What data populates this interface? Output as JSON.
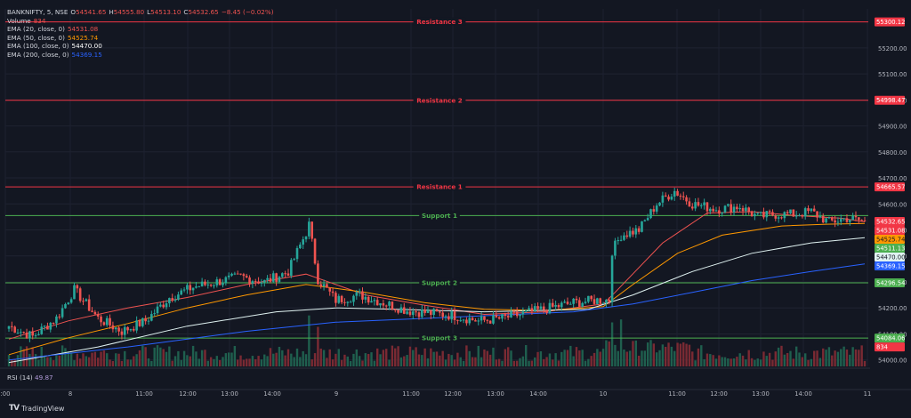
{
  "header": {
    "symbol": "BANKNIFTY, 5, NSE",
    "ohlc": {
      "open_label": "O",
      "open": "54541.65",
      "high_label": "H",
      "high": "54555.80",
      "low_label": "L",
      "low": "54513.10",
      "close_label": "C",
      "close": "54532.65",
      "change": "−8.45 (−0.02%)"
    },
    "volume_label": "Volume",
    "volume_value": "834",
    "ema_rows": [
      {
        "label": "EMA (20, close, 0)",
        "value": "54531.08",
        "color": "#ef5350"
      },
      {
        "label": "EMA (50, close, 0)",
        "value": "54525.74",
        "color": "#ff9800"
      },
      {
        "label": "EMA (100, close, 0)",
        "value": "54470.00",
        "color": "#e0f2f1"
      },
      {
        "label": "EMA (200, close, 0)",
        "value": "54369.15",
        "color": "#2962ff"
      }
    ]
  },
  "rsi": {
    "label": "RSI (14)",
    "value": "49.87",
    "color": "#b39ddb"
  },
  "branding": {
    "name": "TradingView"
  },
  "chart_data": {
    "type": "candlestick",
    "ylim": [
      53975,
      55350
    ],
    "yticks": [
      54000,
      54100,
      54200,
      54300,
      54400,
      54500,
      54600,
      54700,
      54800,
      54900,
      55000,
      55100,
      55200
    ],
    "ytick_labels": [
      "54000.00",
      "54100.00",
      "54200.00",
      "54300.00",
      "54400.00",
      "54500.00",
      "54600.00",
      "54700.00",
      "54800.00",
      "54900.00",
      "55000.00",
      "55100.00",
      "55200.00"
    ],
    "xtick_labels": [
      ":00",
      "8",
      "11:00",
      "12:00",
      "13:00",
      "14:00",
      "9",
      "11:00",
      "12:00",
      "13:00",
      "14:00",
      "10",
      "11:00",
      "12:00",
      "13:00",
      "14:00",
      "11"
    ],
    "levels": [
      {
        "name": "Resistance 3",
        "value": 55300.12,
        "label": "55300.12",
        "color": "#f23645"
      },
      {
        "name": "Resistance 2",
        "value": 54998.47,
        "label": "54998.47",
        "color": "#f23645"
      },
      {
        "name": "Resistance 1",
        "value": 54665.57,
        "label": "54665.57",
        "color": "#f23645"
      },
      {
        "name": "Support 1",
        "value": 54555.0,
        "label": "",
        "color": "#4caf50"
      },
      {
        "name": "Support 2",
        "value": 54296.54,
        "label": "54296.54",
        "color": "#4caf50"
      },
      {
        "name": "Support 3",
        "value": 54084.06,
        "label": "54084.06",
        "color": "#4caf50"
      }
    ],
    "price_tags": [
      {
        "value": 54532.65,
        "label": "54532.65",
        "color": "#f23645",
        "text_color": "#ffffff"
      },
      {
        "value": 54531.08,
        "label": "54531.08",
        "color": "#f23645",
        "text_color": "#ffffff"
      },
      {
        "value": 54525.74,
        "label": "54525.74",
        "color": "#ff9800",
        "text_color": "#131722"
      },
      {
        "value": 54511.13,
        "label": "54511.13",
        "color": "#4caf50",
        "text_color": "#ffffff"
      },
      {
        "value": 54470.0,
        "label": "54470.00",
        "color": "#e0f2f1",
        "text_color": "#131722"
      },
      {
        "value": 54369.15,
        "label": "54369.15",
        "color": "#2962ff",
        "text_color": "#ffffff"
      },
      {
        "value": 54072.0,
        "label": "834",
        "color": "#f23645",
        "text_color": "#ffffff"
      }
    ],
    "candle_anchors": [
      [
        0,
        54130
      ],
      [
        8,
        54090
      ],
      [
        16,
        54160
      ],
      [
        22,
        54270
      ],
      [
        30,
        54160
      ],
      [
        38,
        54110
      ],
      [
        46,
        54150
      ],
      [
        54,
        54240
      ],
      [
        62,
        54280
      ],
      [
        70,
        54300
      ],
      [
        78,
        54320
      ],
      [
        86,
        54300
      ],
      [
        94,
        54340
      ],
      [
        100,
        54490
      ],
      [
        101,
        54520
      ],
      [
        104,
        54310
      ],
      [
        110,
        54230
      ],
      [
        118,
        54250
      ],
      [
        126,
        54220
      ],
      [
        134,
        54190
      ],
      [
        142,
        54180
      ],
      [
        150,
        54170
      ],
      [
        158,
        54150
      ],
      [
        166,
        54160
      ],
      [
        174,
        54180
      ],
      [
        182,
        54200
      ],
      [
        190,
        54220
      ],
      [
        198,
        54230
      ],
      [
        202,
        54230
      ],
      [
        203,
        54420
      ],
      [
        206,
        54480
      ],
      [
        212,
        54500
      ],
      [
        218,
        54600
      ],
      [
        224,
        54650
      ],
      [
        230,
        54600
      ],
      [
        238,
        54580
      ],
      [
        246,
        54590
      ],
      [
        252,
        54550
      ],
      [
        258,
        54560
      ],
      [
        264,
        54560
      ],
      [
        270,
        54570
      ],
      [
        276,
        54530
      ],
      [
        282,
        54545
      ],
      [
        288,
        54533
      ]
    ],
    "ema_series": [
      {
        "name": "EMA 20",
        "color": "#ef5350",
        "points": [
          [
            0,
            54080
          ],
          [
            20,
            54150
          ],
          [
            40,
            54200
          ],
          [
            60,
            54240
          ],
          [
            80,
            54290
          ],
          [
            100,
            54330
          ],
          [
            120,
            54250
          ],
          [
            140,
            54210
          ],
          [
            160,
            54175
          ],
          [
            180,
            54185
          ],
          [
            200,
            54215
          ],
          [
            204,
            54260
          ],
          [
            220,
            54450
          ],
          [
            235,
            54565
          ],
          [
            250,
            54570
          ],
          [
            265,
            54555
          ],
          [
            280,
            54545
          ],
          [
            288,
            54531
          ]
        ]
      },
      {
        "name": "EMA 50",
        "color": "#ff9800",
        "points": [
          [
            0,
            54020
          ],
          [
            20,
            54085
          ],
          [
            40,
            54140
          ],
          [
            60,
            54200
          ],
          [
            80,
            54250
          ],
          [
            100,
            54290
          ],
          [
            120,
            54260
          ],
          [
            140,
            54220
          ],
          [
            160,
            54195
          ],
          [
            180,
            54190
          ],
          [
            200,
            54205
          ],
          [
            210,
            54290
          ],
          [
            225,
            54410
          ],
          [
            240,
            54480
          ],
          [
            260,
            54515
          ],
          [
            275,
            54522
          ],
          [
            288,
            54525
          ]
        ]
      },
      {
        "name": "EMA 100",
        "color": "#e0f2f1",
        "points": [
          [
            0,
            53990
          ],
          [
            30,
            54050
          ],
          [
            60,
            54130
          ],
          [
            90,
            54185
          ],
          [
            110,
            54200
          ],
          [
            130,
            54195
          ],
          [
            160,
            54185
          ],
          [
            195,
            54195
          ],
          [
            210,
            54250
          ],
          [
            230,
            54340
          ],
          [
            250,
            54410
          ],
          [
            270,
            54450
          ],
          [
            288,
            54470
          ]
        ]
      },
      {
        "name": "EMA 200",
        "color": "#2962ff",
        "points": [
          [
            0,
            54000
          ],
          [
            40,
            54050
          ],
          [
            80,
            54110
          ],
          [
            110,
            54145
          ],
          [
            150,
            54165
          ],
          [
            190,
            54185
          ],
          [
            210,
            54215
          ],
          [
            230,
            54260
          ],
          [
            250,
            54305
          ],
          [
            270,
            54340
          ],
          [
            288,
            54369
          ]
        ]
      }
    ]
  }
}
